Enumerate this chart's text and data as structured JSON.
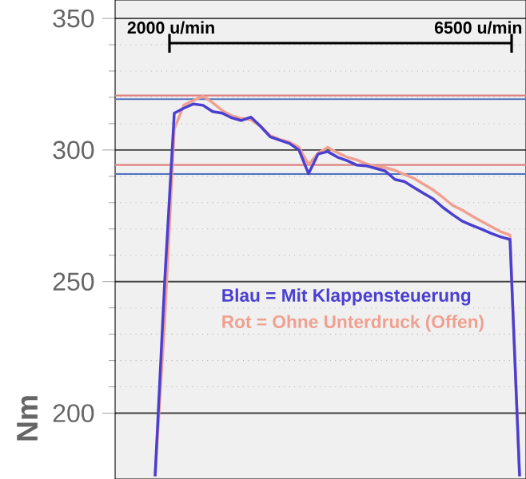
{
  "chart_data": {
    "type": "line",
    "ylabel": "Nm",
    "categories": [
      null,
      null,
      null,
      null,
      null,
      null,
      null,
      null,
      null,
      null,
      null,
      null,
      null,
      null,
      null,
      null,
      null,
      null,
      null,
      null,
      null,
      null,
      null,
      null,
      null,
      null,
      null,
      null,
      null,
      null,
      null,
      null,
      null,
      null,
      null,
      null,
      null,
      null,
      null
    ],
    "ylim": [
      175,
      357
    ],
    "yticks": [
      200,
      250,
      300,
      350
    ],
    "tick_labels": "y",
    "grid": "y",
    "marker": "none",
    "line_style": "solid",
    "series": [
      {
        "name": "Rot = Ohne Unterdruck (Offen)",
        "color": "#f0a090",
        "values": [
          176,
          235,
          308,
          317.1,
          318.8,
          320.5,
          318,
          315,
          313,
          312,
          311.5,
          309,
          305.5,
          304,
          303,
          301,
          294.5,
          298.8,
          301,
          299,
          297.3,
          296.3,
          294.8,
          293.7,
          293.3,
          292.3,
          290.7,
          289.2,
          287,
          284.8,
          282,
          279,
          277.2,
          275,
          273,
          271,
          269,
          267.7,
          176
        ]
      },
      {
        "name": "Blau = Mit Klappensteuerung",
        "color": "#4a3fd0",
        "values": [
          176,
          250,
          314,
          315.9,
          317.5,
          317,
          314.6,
          314,
          312.2,
          311.2,
          312.5,
          309,
          305,
          303.7,
          302.5,
          300,
          291,
          298.5,
          299.4,
          297.3,
          296,
          294.3,
          294,
          293,
          292,
          288.8,
          288,
          285.7,
          283.5,
          281.4,
          278.2,
          275.5,
          273,
          271.4,
          270,
          268.4,
          267,
          266,
          176
        ]
      }
    ],
    "ref_lines": [
      {
        "axis": "y",
        "value": 320.7,
        "color": "#e08080"
      },
      {
        "axis": "y",
        "value": 319.3,
        "color": "#5070c0"
      },
      {
        "axis": "y",
        "value": 294.3,
        "color": "#e08080"
      },
      {
        "axis": "y",
        "value": 290.9,
        "color": "#5070c0"
      }
    ],
    "annotations": [
      "2000 u/min",
      "6500 u/min"
    ]
  }
}
